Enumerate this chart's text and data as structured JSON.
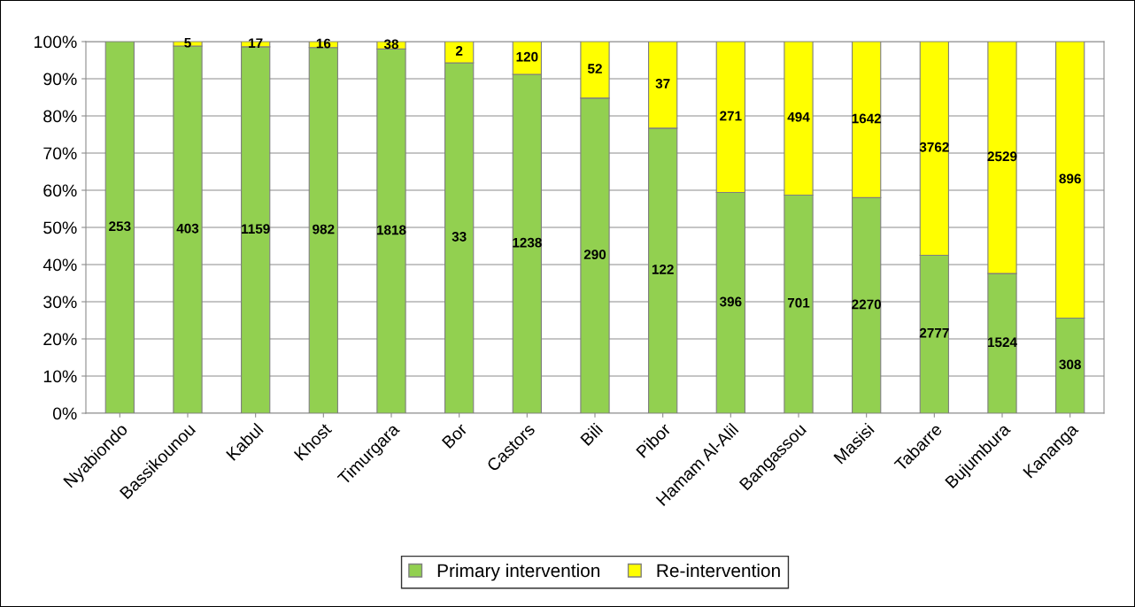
{
  "chart_data": {
    "type": "bar",
    "stacked": true,
    "categories": [
      "Nyabiondo",
      "Bassikounou",
      "Kabul",
      "Khost",
      "Timurgara",
      "Bor",
      "Castors",
      "Bili",
      "Pibor",
      "Hamam Al-Alil",
      "Bangassou",
      "Masisi",
      "Tabarre",
      "Bujumbura",
      "Kananga"
    ],
    "series": [
      {
        "name": "Primary intervention",
        "color": "#92d050",
        "values": [
          100,
          98.8,
          98.6,
          98.4,
          98.0,
          94.3,
          91.2,
          84.8,
          76.7,
          59.4,
          58.7,
          58.0,
          42.5,
          37.6,
          25.6
        ]
      },
      {
        "name": "Re-intervention",
        "color": "#ffff00",
        "values": [
          null,
          1.2,
          1.4,
          1.6,
          2.0,
          5.7,
          8.8,
          15.2,
          23.3,
          40.6,
          41.3,
          42.0,
          57.5,
          62.4,
          74.4
        ]
      }
    ],
    "annotations": [
      {
        "text": "253",
        "x": "Nyabiondo",
        "y": 50
      },
      {
        "text": "403",
        "x": "Bassikounou",
        "y": 49.4
      },
      {
        "text": "1159",
        "x": "Kabul",
        "y": 49.3
      },
      {
        "text": "982",
        "x": "Khost",
        "y": 49.2
      },
      {
        "text": "1818",
        "x": "Timurgara",
        "y": 49.0
      },
      {
        "text": "33",
        "x": "Bor",
        "y": 47.2
      },
      {
        "text": "1238",
        "x": "Castors",
        "y": 45.6
      },
      {
        "text": "290",
        "x": "Bili",
        "y": 42.4
      },
      {
        "text": "122",
        "x": "Pibor",
        "y": 38.4
      },
      {
        "text": "396",
        "x": "Hamam Al-Alil",
        "y": 29.7
      },
      {
        "text": "701",
        "x": "Bangassou",
        "y": 29.4
      },
      {
        "text": "2270",
        "x": "Masisi",
        "y": 29.0
      },
      {
        "text": "2777",
        "x": "Tabarre",
        "y": 21.3
      },
      {
        "text": "1524",
        "x": "Bujumbura",
        "y": 18.8
      },
      {
        "text": "308",
        "x": "Kananga",
        "y": 12.8
      },
      {
        "text": "5",
        "x": "Bassikounou",
        "y": 99.4
      },
      {
        "text": "17",
        "x": "Kabul",
        "y": 99.3
      },
      {
        "text": "16",
        "x": "Khost",
        "y": 99.2
      },
      {
        "text": "38",
        "x": "Timurgara",
        "y": 99.0
      },
      {
        "text": "2",
        "x": "Bor",
        "y": 97.2
      },
      {
        "text": "120",
        "x": "Castors",
        "y": 95.6
      },
      {
        "text": "52",
        "x": "Bili",
        "y": 92.4
      },
      {
        "text": "37",
        "x": "Pibor",
        "y": 88.4
      },
      {
        "text": "271",
        "x": "Hamam Al-Alil",
        "y": 79.7
      },
      {
        "text": "494",
        "x": "Bangassou",
        "y": 79.4
      },
      {
        "text": "1642",
        "x": "Masisi",
        "y": 79.0
      },
      {
        "text": "3762",
        "x": "Tabarre",
        "y": 71.3
      },
      {
        "text": "2529",
        "x": "Bujumbura",
        "y": 68.8
      },
      {
        "text": "896",
        "x": "Kananga",
        "y": 62.8
      }
    ],
    "ylim": [
      0,
      100
    ],
    "yticks": [
      {
        "value": 0,
        "label": "0%"
      },
      {
        "value": 10,
        "label": "10%"
      },
      {
        "value": 20,
        "label": "20%"
      },
      {
        "value": 30,
        "label": "30%"
      },
      {
        "value": 40,
        "label": "40%"
      },
      {
        "value": 50,
        "label": "50%"
      },
      {
        "value": 60,
        "label": "60%"
      },
      {
        "value": 70,
        "label": "70%"
      },
      {
        "value": 80,
        "label": "80%"
      },
      {
        "value": 90,
        "label": "90%"
      },
      {
        "value": 100,
        "label": "100%"
      }
    ],
    "grid": "y",
    "legend": "bottom"
  }
}
